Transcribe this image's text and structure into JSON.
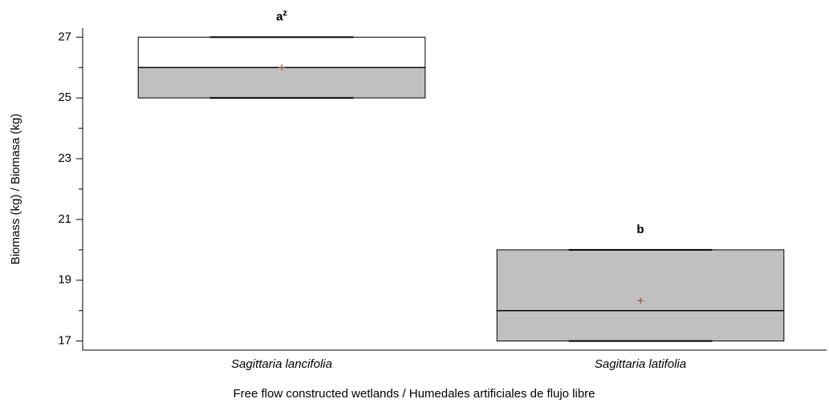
{
  "chart_data": {
    "type": "box",
    "categories": [
      "Sagittaria lancifolia",
      "Sagittaria latifolia"
    ],
    "boxes": [
      {
        "min": 25,
        "q1": 25,
        "median": 26,
        "q3": 27,
        "max": 27,
        "mean": 26
      },
      {
        "min": 17,
        "q1": 17,
        "median": 18,
        "q3": 20,
        "max": 20,
        "mean": 18.33
      }
    ],
    "annotations": [
      {
        "text": "a",
        "sup": "z"
      },
      {
        "text": "b"
      }
    ],
    "xlabel": "Free flow constructed wetlands / Humedales artificiales de flujo libre",
    "ylabel": "Biomass (kg) / Biomasa (kg)",
    "ylim": [
      16.7,
      27.3
    ],
    "yticks": [
      17,
      19,
      21,
      23,
      25,
      27
    ],
    "minor_yticks": [
      18,
      20,
      22,
      24,
      26
    ],
    "box_color": "#c0c0c0",
    "mean_color": "#a0522d"
  }
}
